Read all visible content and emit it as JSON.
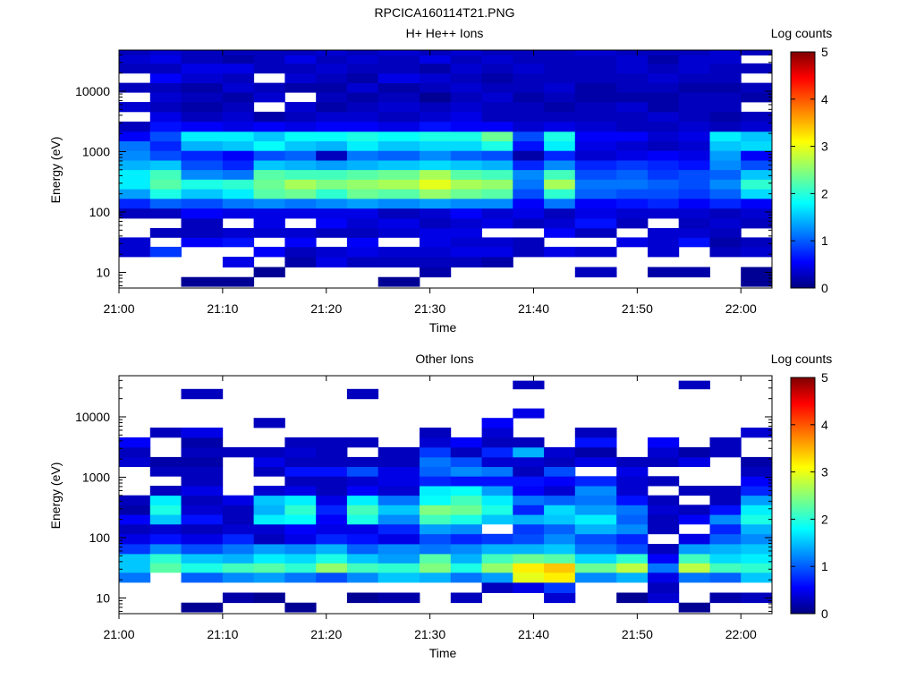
{
  "figure_title": "RPCICA160114T21.PNG",
  "chart_data": [
    {
      "type": "heatmap",
      "title": "H+ He++ Ions",
      "xlabel": "Time",
      "ylabel": "Energy (eV)",
      "x_ticks": [
        "21:00",
        "21:10",
        "21:20",
        "21:30",
        "21:40",
        "21:50",
        "22:00"
      ],
      "x_range": [
        "21:00",
        "22:03"
      ],
      "y_scale": "log",
      "y_range": [
        5.5,
        48000
      ],
      "y_ticks": [
        10,
        100,
        1000,
        10000
      ],
      "y_tick_labels": [
        "10",
        "100",
        "1000",
        "10000"
      ],
      "colorbar": {
        "label": "Log counts",
        "range": [
          0,
          5
        ],
        "ticks": [
          "0",
          "1",
          "2",
          "3",
          "4",
          "5"
        ]
      },
      "time_bins_start": [
        "21:00",
        "21:03",
        "21:06",
        "21:10",
        "21:13",
        "21:16",
        "21:19",
        "21:22",
        "21:25",
        "21:29",
        "21:32",
        "21:35",
        "21:38",
        "21:41",
        "21:44",
        "21:48",
        "21:51",
        "21:54",
        "21:57",
        "22:00"
      ],
      "energy_bins_eV": [
        7,
        10,
        15,
        22,
        32,
        45,
        65,
        95,
        140,
        200,
        290,
        420,
        600,
        870,
        1250,
        1800,
        2600,
        3800,
        5500,
        8000,
        11500,
        16500,
        24000,
        35000,
        45000
      ],
      "log_counts": [
        [
          0,
          0,
          0,
          0.4,
          0.4,
          0,
          0,
          0.3,
          0.8,
          1.4,
          1.8,
          1.8,
          1.5,
          1.3,
          1.2,
          0.6,
          0.3,
          0,
          0.4,
          0,
          0.3,
          0,
          0.3,
          0.4,
          0.3
        ],
        [
          0,
          0,
          0,
          0.9,
          0,
          0.3,
          0,
          0.3,
          1.1,
          2.0,
          2.3,
          2.2,
          1.6,
          1.0,
          0.8,
          1.0,
          0.7,
          0.5,
          0.3,
          0.4,
          0.3,
          0.6,
          0.3,
          0.5,
          0.4
        ],
        [
          0.1,
          0,
          0,
          0,
          0.6,
          0.3,
          0.3,
          0.6,
          1.0,
          1.6,
          2.0,
          1.3,
          1.0,
          0.8,
          1.5,
          1.8,
          0.6,
          0.3,
          0.2,
          0.3,
          0.2,
          0.4,
          0.5,
          0.3,
          0.3
        ],
        [
          0.1,
          0,
          0.5,
          0,
          0.7,
          0.4,
          0,
          0.5,
          1.2,
          1.8,
          2.1,
          1.2,
          0.8,
          0.6,
          1.6,
          1.8,
          0.5,
          0.4,
          0.3,
          0.2,
          0.4,
          0.3,
          0.5,
          0.2,
          0.3
        ],
        [
          0,
          0.1,
          0,
          0.6,
          0,
          0.4,
          0.5,
          0.5,
          1.3,
          2.3,
          2.4,
          2.3,
          1.6,
          1.0,
          1.9,
          1.6,
          0.6,
          0.2,
          0,
          0.4,
          0.3,
          0,
          0.3,
          0.3,
          0.3
        ],
        [
          0,
          0,
          0.2,
          0.3,
          0.6,
          0.4,
          0,
          0.5,
          1.2,
          2.4,
          2.7,
          2.2,
          1.5,
          1.1,
          1.6,
          1.9,
          0.5,
          0.3,
          0.4,
          0,
          0.2,
          0.4,
          0.3,
          0.5,
          0.3
        ],
        [
          0,
          0,
          0.5,
          0.4,
          0,
          0.3,
          0.6,
          0.5,
          1.3,
          2.1,
          2.5,
          2.2,
          1.4,
          0.3,
          1.5,
          1.9,
          0.6,
          0.4,
          0.2,
          0.3,
          0.2,
          0.3,
          0.4,
          0.3,
          0.4
        ],
        [
          0,
          0,
          0.3,
          0.5,
          0.6,
          0.3,
          0.4,
          0.5,
          1.4,
          2.4,
          2.6,
          2.3,
          1.5,
          1.2,
          1.8,
          2.0,
          0.6,
          0.4,
          0.3,
          0.2,
          0.4,
          0.2,
          0.3,
          0.4,
          0.3
        ],
        [
          0.1,
          0,
          0.3,
          0.4,
          0,
          0.4,
          0.5,
          0.3,
          1.3,
          2.3,
          2.7,
          2.4,
          1.6,
          1.1,
          1.6,
          1.9,
          0.5,
          0.3,
          0.4,
          0.3,
          0.2,
          0.5,
          0.3,
          0.3,
          0.4
        ],
        [
          0,
          0.2,
          0.3,
          0.4,
          0.5,
          0.5,
          0.3,
          0.4,
          1.4,
          2.6,
          3.0,
          2.7,
          1.7,
          1.3,
          1.7,
          2.0,
          0.7,
          0.4,
          0.3,
          0.1,
          0.3,
          0.4,
          0.2,
          0.5,
          0.3
        ],
        [
          0,
          0,
          0.3,
          0.5,
          0.4,
          0.5,
          0.4,
          0.6,
          1.3,
          2.4,
          2.7,
          2.3,
          1.6,
          1.1,
          1.7,
          2.0,
          0.6,
          0.5,
          0.4,
          0.3,
          0.4,
          0.3,
          0.4,
          0.3,
          0.4
        ],
        [
          0,
          0,
          0.2,
          0.5,
          0.4,
          0,
          0.5,
          0.4,
          1.3,
          2.3,
          2.6,
          2.2,
          1.5,
          1.0,
          2.0,
          2.4,
          0.6,
          0.3,
          0.3,
          0.4,
          0.3,
          0.2,
          0.3,
          0.4,
          0.3
        ],
        [
          0,
          0,
          0,
          0.3,
          0.3,
          0,
          0.3,
          0.5,
          0.6,
          1.0,
          1.2,
          1.3,
          0.8,
          0.2,
          0.7,
          1.0,
          0.4,
          0.3,
          0.3,
          0.2,
          0.3,
          0.3,
          0.4,
          0.3,
          0.3
        ],
        [
          0,
          0,
          0,
          0.5,
          0,
          0.6,
          0.4,
          0.3,
          1.2,
          2.1,
          2.7,
          2.2,
          1.3,
          0.8,
          1.8,
          2.0,
          0.5,
          0.3,
          0.2,
          0.3,
          0.4,
          0.3,
          0.3,
          0.3,
          0.3
        ],
        [
          0,
          0.3,
          0,
          0.4,
          0,
          0.3,
          0.7,
          0.5,
          0.6,
          1.1,
          1.2,
          1.0,
          0.8,
          0.4,
          0.5,
          0.6,
          0.4,
          0.3,
          0.3,
          0.2,
          0.2,
          0.3,
          0.3,
          0.3,
          0.4
        ],
        [
          0,
          0,
          0,
          0,
          0.5,
          0,
          0.3,
          0.4,
          0.7,
          1.0,
          1.2,
          1.1,
          0.9,
          0.5,
          0.4,
          0.6,
          0.3,
          0.3,
          0.4,
          0.2,
          0.3,
          0.3,
          0.4,
          0.4,
          0.3
        ],
        [
          0,
          0.2,
          0,
          0.4,
          0.4,
          0.4,
          0,
          0.4,
          0.8,
          1.0,
          1.1,
          0.9,
          0.8,
          0.6,
          0.3,
          0.4,
          0.3,
          0.4,
          0.2,
          0.2,
          0.3,
          0.4,
          0.3,
          0.2,
          0.3
        ],
        [
          0,
          0.2,
          0,
          0,
          0.7,
          0.4,
          0.3,
          0.4,
          0.6,
          0.9,
          1.0,
          1.0,
          0.7,
          0.5,
          0.4,
          0.5,
          0.4,
          0.3,
          0.3,
          0.3,
          0.2,
          0.3,
          0.4,
          0.4,
          0.3
        ],
        [
          0,
          0,
          0,
          0.3,
          0.2,
          0.3,
          0.4,
          0.3,
          0.8,
          1.1,
          1.3,
          1.1,
          1.3,
          1.4,
          1.6,
          1.8,
          0.3,
          0.2,
          0.3,
          0.3,
          0.2,
          0.3,
          0.3,
          0.4,
          0.4
        ],
        [
          0.1,
          0.1,
          0,
          0.4,
          0.3,
          0,
          0.3,
          0.4,
          0.6,
          1.7,
          2.1,
          1.6,
          1.0,
          0.6,
          1.7,
          1.6,
          0.4,
          0.3,
          0,
          0.2,
          0.3,
          0,
          0.3,
          0,
          0.3
        ]
      ]
    },
    {
      "type": "heatmap",
      "title": "Other Ions",
      "xlabel": "Time",
      "ylabel": "Energy (eV)",
      "x_ticks": [
        "21:00",
        "21:10",
        "21:20",
        "21:30",
        "21:40",
        "21:50",
        "22:00"
      ],
      "x_range": [
        "21:00",
        "22:03"
      ],
      "y_scale": "log",
      "y_range": [
        5.5,
        48000
      ],
      "y_ticks": [
        10,
        100,
        1000,
        10000
      ],
      "y_tick_labels": [
        "10",
        "100",
        "1000",
        "10000"
      ],
      "colorbar": {
        "label": "Log counts",
        "range": [
          0,
          5
        ],
        "ticks": [
          "0",
          "1",
          "2",
          "3",
          "4",
          "5"
        ]
      },
      "time_bins_start": [
        "21:00",
        "21:03",
        "21:06",
        "21:10",
        "21:13",
        "21:16",
        "21:19",
        "21:22",
        "21:25",
        "21:29",
        "21:32",
        "21:35",
        "21:38",
        "21:41",
        "21:44",
        "21:48",
        "21:51",
        "21:54",
        "21:57",
        "22:00"
      ],
      "energy_bins_eV": [
        7,
        10,
        15,
        22,
        32,
        45,
        65,
        95,
        140,
        200,
        290,
        420,
        600,
        870,
        1250,
        1800,
        2600,
        3800,
        5500,
        8000,
        11500,
        16500,
        24000,
        35000,
        45000
      ],
      "log_counts": [
        [
          0,
          0,
          0,
          1.2,
          1.6,
          1.6,
          0.9,
          0.5,
          0.3,
          0.6,
          0.2,
          0.3,
          0,
          0,
          0,
          0.4,
          0.3,
          0.6,
          0,
          0,
          0,
          0,
          0,
          0,
          0
        ],
        [
          0,
          0,
          0,
          0,
          2.3,
          2.1,
          1.3,
          0.7,
          0.4,
          1.6,
          2.0,
          1.8,
          0.3,
          0,
          0.3,
          0.2,
          0,
          0,
          0.3,
          0,
          0,
          0,
          0,
          0,
          0
        ],
        [
          0.1,
          0,
          0,
          1.1,
          2.0,
          1.6,
          1.0,
          0.5,
          0.3,
          0.7,
          0.4,
          0.3,
          0.5,
          0.3,
          0.3,
          0.2,
          0.3,
          0.2,
          0.5,
          0,
          0,
          0,
          0.3,
          0,
          0
        ],
        [
          0,
          0.2,
          0,
          1.3,
          2.2,
          1.5,
          1.2,
          0.8,
          0.4,
          0.3,
          0.3,
          0.5,
          0,
          0,
          0,
          0,
          0.3,
          0,
          0,
          0,
          0,
          0,
          0,
          0,
          0
        ],
        [
          0,
          0.1,
          0,
          1.4,
          2.3,
          1.8,
          1.4,
          0.3,
          0.4,
          1.8,
          1.5,
          1.6,
          0.4,
          0,
          0.3,
          0.5,
          0.3,
          0,
          0,
          0.3,
          0,
          0,
          0,
          0,
          0
        ],
        [
          0.1,
          0,
          0,
          1.2,
          2.1,
          1.7,
          1.3,
          0.5,
          0.6,
          1.9,
          2.1,
          1.8,
          0.5,
          0.3,
          0.7,
          0.3,
          0.4,
          0.3,
          0,
          0,
          0,
          0,
          0,
          0,
          0
        ],
        [
          0,
          0,
          0,
          1.0,
          2.6,
          2.0,
          1.5,
          0.8,
          0.5,
          0.6,
          0.8,
          0.5,
          0.3,
          0.3,
          0.7,
          0.3,
          0.3,
          0.3,
          0,
          0,
          0,
          0,
          0,
          0,
          0
        ],
        [
          0,
          0.1,
          0,
          1.3,
          2.2,
          1.6,
          1.1,
          0.7,
          0.5,
          2.0,
          2.2,
          1.8,
          0.6,
          0.4,
          1.0,
          0.3,
          0,
          0.3,
          0,
          0,
          0,
          0,
          0.3,
          0,
          0
        ],
        [
          0,
          0.2,
          0,
          1.6,
          2.1,
          1.4,
          1.3,
          0.5,
          0.8,
          1.3,
          1.6,
          1.2,
          0.4,
          0.5,
          0.5,
          0.3,
          0.3,
          0,
          0,
          0,
          0,
          0,
          0,
          0,
          0
        ],
        [
          0,
          0,
          0,
          1.5,
          2.5,
          2.3,
          1.2,
          1.0,
          1.4,
          2.2,
          2.5,
          1.9,
          1.8,
          0.8,
          1.1,
          1.2,
          0.9,
          0.4,
          0.3,
          0,
          0,
          0,
          0,
          0,
          0
        ],
        [
          0,
          0.3,
          0,
          1.2,
          2.0,
          1.5,
          1.3,
          0.8,
          1.3,
          2.0,
          2.4,
          2.2,
          1.9,
          0.7,
          1.3,
          1.0,
          0.3,
          0.6,
          0,
          0,
          0,
          0,
          0,
          0,
          0
        ],
        [
          0,
          0,
          0.3,
          1.4,
          2.6,
          2.2,
          1.5,
          0.9,
          0,
          1.6,
          2.0,
          1.8,
          1.4,
          0.7,
          1.2,
          0.4,
          0.8,
          0.3,
          0.4,
          0.6,
          0,
          0,
          0,
          0,
          0
        ],
        [
          0,
          0,
          0.5,
          3.0,
          3.2,
          2.4,
          1.5,
          1.0,
          0.9,
          1.5,
          0.8,
          1.2,
          0.6,
          0.7,
          0.3,
          0.4,
          1.5,
          0.3,
          0,
          0,
          0.5,
          0,
          0,
          0.3,
          0
        ],
        [
          0,
          0.4,
          0.9,
          3.2,
          3.4,
          2.3,
          1.6,
          1.3,
          1.1,
          1.6,
          1.7,
          1.1,
          0.4,
          0.6,
          1.0,
          0.3,
          0.4,
          0,
          0,
          0,
          0,
          0,
          0,
          0,
          0
        ],
        [
          0,
          0,
          0,
          1.3,
          2.4,
          1.7,
          1.2,
          1.0,
          1.5,
          1.8,
          1.4,
          1.2,
          1.3,
          0.8,
          0,
          0.5,
          0.2,
          0.7,
          0.3,
          0,
          0,
          0,
          0,
          0,
          0
        ],
        [
          0,
          0.1,
          0,
          1.5,
          2.8,
          2.1,
          1.0,
          0.8,
          1.3,
          1.1,
          1.2,
          0.7,
          0.4,
          0.4,
          0.5,
          0.3,
          0,
          0,
          0,
          0,
          0,
          0,
          0,
          0,
          0
        ],
        [
          0,
          0.4,
          0.3,
          0.5,
          1.2,
          0.6,
          0.3,
          0,
          0.3,
          0.3,
          0.4,
          0.3,
          0,
          0.3,
          0,
          0.3,
          0.4,
          0.6,
          0,
          0,
          0,
          0,
          0,
          0,
          0
        ],
        [
          0.1,
          0,
          0,
          1.2,
          2.8,
          2.2,
          1.4,
          0.5,
          0,
          0.6,
          0.3,
          0,
          0.3,
          0,
          0,
          0.5,
          0.2,
          0,
          0,
          0,
          0,
          0,
          0,
          0.3,
          0
        ],
        [
          0,
          0.2,
          0,
          1.1,
          2.2,
          1.7,
          1.5,
          1.1,
          0.8,
          1.3,
          0.7,
          0.3,
          0.3,
          0,
          0,
          0,
          0.3,
          0.3,
          0,
          0,
          0,
          0,
          0,
          0,
          0
        ],
        [
          0,
          0.3,
          0,
          1.6,
          2.1,
          1.8,
          1.6,
          1.3,
          1.5,
          2.0,
          1.8,
          1.4,
          0.8,
          0.6,
          0.3,
          0.2,
          0,
          0,
          0.4,
          0,
          0,
          0,
          0,
          0,
          0
        ]
      ]
    }
  ]
}
